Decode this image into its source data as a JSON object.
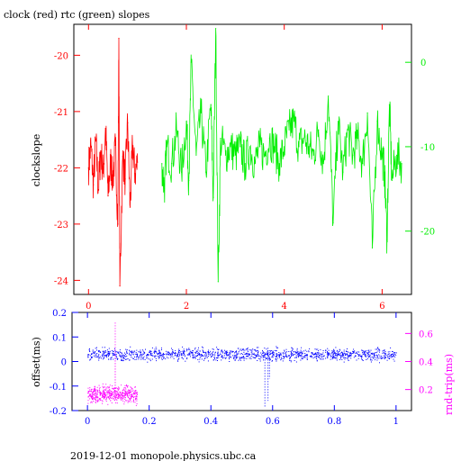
{
  "title": "clock (red) rtc (green) slopes",
  "footer": "2019-12-01 monopole.physics.ubc.ca",
  "colors": {
    "red": "#ff0000",
    "green": "#00ee00",
    "blue": "#0000ff",
    "magenta": "#ff00ff",
    "axis": "#000000"
  },
  "chart_data": [
    {
      "type": "line",
      "title": "clock (red) rtc (green) slopes",
      "xlabel": "",
      "ylabel": "clockslope",
      "xlim": [
        -0.3,
        6.6
      ],
      "x_ticks": [
        "0",
        "2",
        "4",
        "6"
      ],
      "ylim_left": [
        -24.25,
        -19.45
      ],
      "y_ticks_left": [
        "-20",
        "-21",
        "-22",
        "-23",
        "-24"
      ],
      "ylim_right": [
        -27.5,
        4.5
      ],
      "y_ticks_right": [
        "0",
        "-10",
        "-20"
      ],
      "series": [
        {
          "name": "clock",
          "color": "red",
          "axis": "left",
          "x": [
            0.0,
            0.05,
            0.1,
            0.15,
            0.2,
            0.25,
            0.3,
            0.35,
            0.4,
            0.45,
            0.5,
            0.55,
            0.6,
            0.62,
            0.64,
            0.7,
            0.75,
            0.8,
            0.85,
            0.9,
            0.95,
            1.0
          ],
          "values": [
            -22.0,
            -21.6,
            -22.3,
            -21.5,
            -22.4,
            -21.7,
            -22.1,
            -21.3,
            -22.5,
            -21.9,
            -22.2,
            -21.6,
            -23.0,
            -19.7,
            -24.1,
            -21.8,
            -22.2,
            -21.2,
            -22.7,
            -21.6,
            -22.1,
            -21.9
          ]
        },
        {
          "name": "rtc",
          "color": "green",
          "axis": "right",
          "x": [
            1.5,
            1.55,
            1.6,
            1.7,
            1.8,
            1.9,
            2.0,
            2.05,
            2.1,
            2.2,
            2.3,
            2.4,
            2.5,
            2.55,
            2.6,
            2.65,
            2.7,
            2.8,
            2.9,
            3.0,
            3.1,
            3.2,
            3.3,
            3.4,
            3.5,
            3.6,
            3.7,
            3.8,
            3.9,
            4.0,
            4.1,
            4.2,
            4.3,
            4.4,
            4.5,
            4.6,
            4.7,
            4.8,
            4.9,
            5.0,
            5.1,
            5.2,
            5.3,
            5.4,
            5.5,
            5.6,
            5.7,
            5.8,
            5.9,
            6.0,
            6.05,
            6.1,
            6.15,
            6.2,
            6.3,
            6.4
          ],
          "values": [
            -12,
            -15,
            -10,
            -12,
            -8,
            -13,
            -7,
            -14,
            0,
            -11,
            -6,
            -13,
            -5,
            -16,
            4,
            -26,
            -9,
            -11,
            -10,
            -11,
            -10,
            -12,
            -10,
            -12,
            -10,
            -11,
            -9,
            -10,
            -12,
            -10,
            -8,
            -7,
            -10,
            -9,
            -10,
            -11,
            -8,
            -12,
            -4,
            -19,
            -7,
            -13,
            -8,
            -11,
            -9,
            -12,
            -6,
            -22,
            -7,
            -11,
            -13,
            -21,
            -5,
            -14,
            -11,
            -12
          ]
        }
      ]
    },
    {
      "type": "scatter",
      "xlabel": "",
      "ylabel": "offset(ms)",
      "ylabel_right": "rnd-trip(ms)",
      "xlim": [
        -0.05,
        1.05
      ],
      "x_ticks": [
        "0",
        "0.2",
        "0.4",
        "0.6",
        "0.8",
        "1"
      ],
      "ylim_left": [
        -0.2,
        0.2
      ],
      "y_ticks_left": [
        "0.2",
        "0.1",
        "0",
        "-0.1",
        "-0.2"
      ],
      "ylim_right": [
        0.05,
        0.75
      ],
      "y_ticks_right": [
        "0.6",
        "0.4",
        "0.2"
      ],
      "series": [
        {
          "name": "offset",
          "color": "blue",
          "axis": "left",
          "x_range": [
            0.0,
            1.0
          ],
          "center": 0.03,
          "spread": 0.012,
          "outliers": [
            {
              "x": 0.575,
              "y": -0.19
            },
            {
              "x": 0.585,
              "y": -0.16
            },
            {
              "x": 0.59,
              "y": -0.07
            },
            {
              "x": 0.585,
              "y": 0.06
            }
          ]
        },
        {
          "name": "rnd-trip",
          "color": "magenta",
          "axis": "right",
          "x_range": [
            0.0,
            0.16
          ],
          "center": 0.17,
          "spread": 0.03,
          "outliers": [
            {
              "x": 0.09,
              "y": 0.68
            },
            {
              "x": 0.09,
              "y": 0.5
            }
          ]
        }
      ]
    }
  ]
}
